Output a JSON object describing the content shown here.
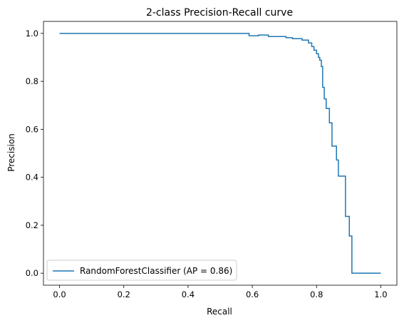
{
  "colors": {
    "series": "#1f77b4",
    "axes": "#000000",
    "background": "#ffffff",
    "legend_border": "#cccccc"
  },
  "chart_data": {
    "type": "line",
    "drawstyle": "steps-post",
    "title": "2-class Precision-Recall curve",
    "xlabel": "Recall",
    "ylabel": "Precision",
    "xlim": [
      -0.05,
      1.05
    ],
    "ylim": [
      -0.05,
      1.05
    ],
    "xticks": [
      0.0,
      0.2,
      0.4,
      0.6,
      0.8,
      1.0
    ],
    "xtick_labels": [
      "0.0",
      "0.2",
      "0.4",
      "0.6",
      "0.8",
      "1.0"
    ],
    "yticks": [
      0.0,
      0.2,
      0.4,
      0.6,
      0.8,
      1.0
    ],
    "ytick_labels": [
      "0.0",
      "0.2",
      "0.4",
      "0.6",
      "0.8",
      "1.0"
    ],
    "grid": false,
    "legend": {
      "placement": "lower left",
      "entries": [
        "RandomForestClassifier (AP = 0.86)"
      ]
    },
    "series": [
      {
        "name": "RandomForestClassifier (AP = 0.86)",
        "color": "#1f77b4",
        "points": [
          [
            1.0,
            0.0
          ],
          [
            0.91,
            0.0
          ],
          [
            0.91,
            0.155
          ],
          [
            0.902,
            0.155
          ],
          [
            0.902,
            0.237
          ],
          [
            0.89,
            0.237
          ],
          [
            0.89,
            0.405
          ],
          [
            0.868,
            0.405
          ],
          [
            0.868,
            0.472
          ],
          [
            0.862,
            0.472
          ],
          [
            0.862,
            0.53
          ],
          [
            0.848,
            0.53
          ],
          [
            0.848,
            0.627
          ],
          [
            0.84,
            0.627
          ],
          [
            0.84,
            0.687
          ],
          [
            0.83,
            0.687
          ],
          [
            0.83,
            0.727
          ],
          [
            0.824,
            0.727
          ],
          [
            0.824,
            0.775
          ],
          [
            0.819,
            0.775
          ],
          [
            0.819,
            0.862
          ],
          [
            0.815,
            0.862
          ],
          [
            0.815,
            0.888
          ],
          [
            0.81,
            0.888
          ],
          [
            0.81,
            0.9
          ],
          [
            0.806,
            0.9
          ],
          [
            0.806,
            0.915
          ],
          [
            0.8,
            0.915
          ],
          [
            0.8,
            0.93
          ],
          [
            0.792,
            0.93
          ],
          [
            0.792,
            0.945
          ],
          [
            0.785,
            0.945
          ],
          [
            0.785,
            0.96
          ],
          [
            0.775,
            0.96
          ],
          [
            0.775,
            0.972
          ],
          [
            0.755,
            0.972
          ],
          [
            0.755,
            0.978
          ],
          [
            0.725,
            0.978
          ],
          [
            0.725,
            0.982
          ],
          [
            0.705,
            0.982
          ],
          [
            0.705,
            0.987
          ],
          [
            0.65,
            0.987
          ],
          [
            0.65,
            0.993
          ],
          [
            0.62,
            0.993
          ],
          [
            0.62,
            0.99
          ],
          [
            0.59,
            0.99
          ],
          [
            0.59,
            1.0
          ],
          [
            0.0,
            1.0
          ]
        ]
      }
    ]
  }
}
